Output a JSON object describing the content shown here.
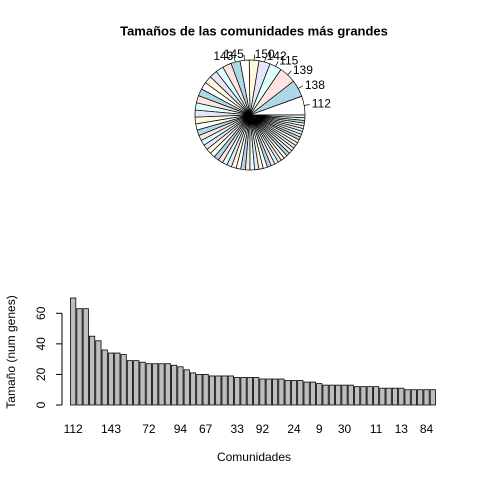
{
  "chart_data": [
    {
      "type": "pie",
      "title": "Tamaños de las comunidades más grandes",
      "categories": [
        "112",
        "138",
        "139",
        "115",
        "142",
        "150",
        "145",
        "143",
        null,
        null,
        null,
        null,
        null,
        null,
        null,
        null,
        null,
        null,
        null,
        null,
        null,
        null,
        null,
        null,
        null,
        null,
        null,
        null,
        null,
        null,
        null,
        null,
        null,
        null,
        null,
        null,
        null,
        null,
        null,
        null,
        null,
        null,
        null,
        null,
        null,
        null,
        null,
        null,
        null,
        null,
        null,
        null,
        null,
        null,
        null,
        null,
        null,
        null
      ],
      "values": [
        70,
        63,
        63,
        45,
        42,
        36,
        34,
        34,
        33,
        29,
        29,
        28,
        27,
        27,
        27,
        27,
        26,
        25,
        23,
        21,
        20,
        20,
        19,
        19,
        19,
        19,
        18,
        18,
        18,
        18,
        17,
        17,
        17,
        17,
        16,
        16,
        16,
        15,
        15,
        14,
        13,
        13,
        13,
        13,
        13,
        12,
        12,
        12,
        12,
        11,
        11,
        11,
        11,
        10,
        10,
        10,
        10,
        10
      ],
      "colors": [
        "#ffffff",
        "#add8e6",
        "#ffe4e1",
        "#e0ffff",
        "#e6e6fa",
        "#fff8dc"
      ]
    },
    {
      "type": "bar",
      "xlabel": "Comunidades",
      "ylabel": "Tamaño (num genes)",
      "categories": [
        "112",
        null,
        null,
        null,
        null,
        null,
        "143",
        null,
        null,
        null,
        null,
        null,
        "72",
        null,
        null,
        null,
        null,
        "94",
        null,
        null,
        null,
        "67",
        null,
        null,
        null,
        null,
        "33",
        null,
        null,
        null,
        "92",
        null,
        null,
        null,
        null,
        "24",
        null,
        null,
        null,
        "9",
        null,
        null,
        null,
        "30",
        null,
        null,
        null,
        null,
        "11",
        null,
        null,
        null,
        "13",
        null,
        null,
        null,
        "84",
        null
      ],
      "values": [
        70,
        63,
        63,
        45,
        42,
        36,
        34,
        34,
        33,
        29,
        29,
        28,
        27,
        27,
        27,
        27,
        26,
        25,
        23,
        21,
        20,
        20,
        19,
        19,
        19,
        19,
        18,
        18,
        18,
        18,
        17,
        17,
        17,
        17,
        16,
        16,
        16,
        15,
        15,
        14,
        13,
        13,
        13,
        13,
        13,
        12,
        12,
        12,
        12,
        11,
        11,
        11,
        11,
        10,
        10,
        10,
        10,
        10
      ],
      "color": "#bebebe",
      "ylim": [
        0,
        70
      ],
      "yticks": [
        0,
        20,
        40,
        60
      ]
    }
  ]
}
